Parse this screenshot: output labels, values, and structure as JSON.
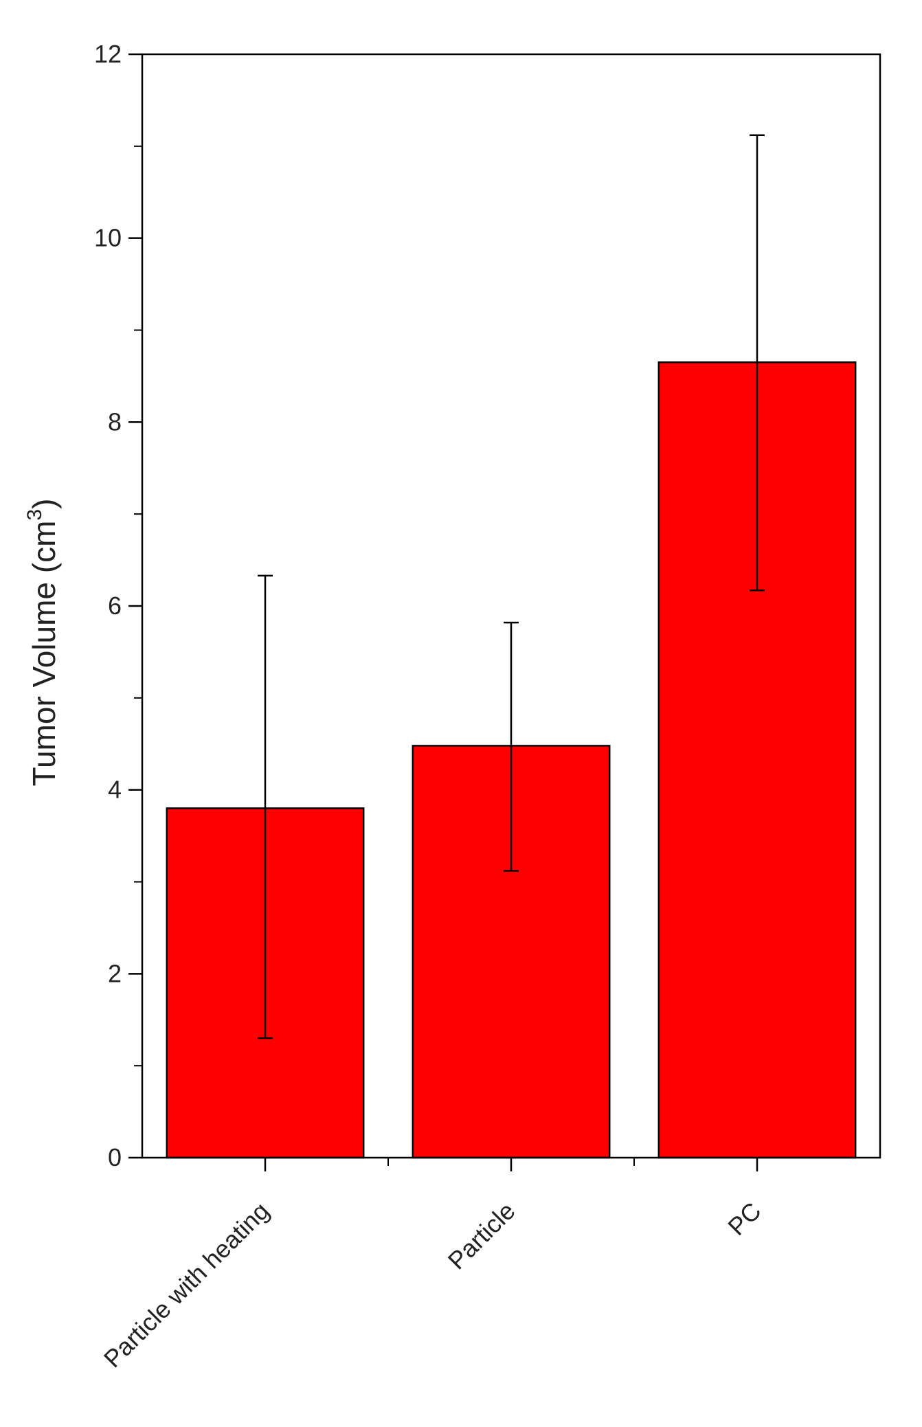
{
  "chart_data": {
    "type": "bar",
    "categories": [
      "Particle with heating",
      "Particle",
      "PC"
    ],
    "values": [
      3.8,
      4.48,
      8.65
    ],
    "error_low": [
      1.3,
      3.12,
      6.17
    ],
    "error_high": [
      6.33,
      5.82,
      11.12
    ],
    "ylabel_main": "Tumor Volume (cm",
    "ylabel_sup": "3",
    "ylabel_close": ")",
    "ylim": [
      0,
      12
    ],
    "yticks_major": [
      0,
      2,
      4,
      6,
      8,
      10,
      12
    ],
    "yticks_minor": [
      1,
      3,
      5,
      7,
      9,
      11
    ],
    "grid": false,
    "colors": {
      "bar_fill": "#ff0000",
      "bar_stroke": "#000000",
      "axis": "#000000",
      "error_bar": "#000000"
    }
  }
}
